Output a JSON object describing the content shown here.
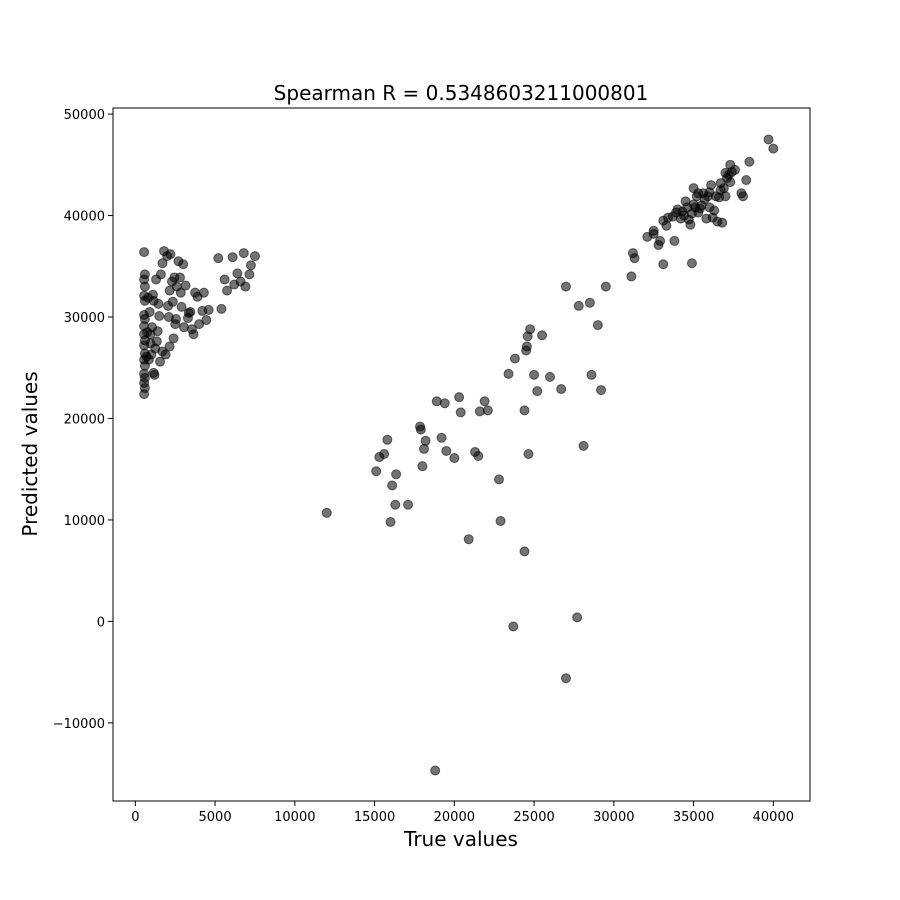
{
  "chart_data": {
    "type": "scatter",
    "title": "Spearman R = 0.5348603211000801",
    "xlabel": "True values",
    "ylabel": "Predicted values",
    "xlim": [
      -1400,
      42300
    ],
    "ylim": [
      -17700,
      50600
    ],
    "xticks": [
      0,
      5000,
      10000,
      15000,
      20000,
      25000,
      30000,
      35000,
      40000
    ],
    "xtick_labels": [
      "0",
      "5000",
      "10000",
      "15000",
      "20000",
      "25000",
      "30000",
      "35000",
      "40000"
    ],
    "yticks": [
      -10000,
      0,
      10000,
      20000,
      30000,
      40000,
      50000
    ],
    "ytick_labels": [
      "−10000",
      "0",
      "10000",
      "20000",
      "30000",
      "40000",
      "50000"
    ],
    "grid": false,
    "marker_color": "#000000",
    "marker_alpha": 0.55,
    "series": [
      {
        "points": [
          [
            550,
            36400
          ],
          [
            600,
            34200
          ],
          [
            550,
            33700
          ],
          [
            600,
            33000
          ],
          [
            550,
            32100
          ],
          [
            600,
            31600
          ],
          [
            550,
            30200
          ],
          [
            600,
            29800
          ],
          [
            550,
            29100
          ],
          [
            550,
            28300
          ],
          [
            600,
            27700
          ],
          [
            550,
            27200
          ],
          [
            600,
            26400
          ],
          [
            550,
            25800
          ],
          [
            600,
            25200
          ],
          [
            550,
            24400
          ],
          [
            600,
            24000
          ],
          [
            550,
            23500
          ],
          [
            600,
            23000
          ],
          [
            550,
            22400
          ],
          [
            700,
            26100
          ],
          [
            750,
            28500
          ],
          [
            800,
            31900
          ],
          [
            900,
            30500
          ],
          [
            950,
            27400
          ],
          [
            1000,
            26300
          ],
          [
            1050,
            29000
          ],
          [
            1100,
            32200
          ],
          [
            1150,
            24500
          ],
          [
            1200,
            24300
          ],
          [
            1250,
            26900
          ],
          [
            1300,
            33700
          ],
          [
            1350,
            27600
          ],
          [
            1400,
            28600
          ],
          [
            1450,
            31300
          ],
          [
            1500,
            30100
          ],
          [
            1550,
            25600
          ],
          [
            1600,
            34200
          ],
          [
            1700,
            35300
          ],
          [
            1800,
            36500
          ],
          [
            1900,
            26300
          ],
          [
            2000,
            36000
          ],
          [
            2050,
            31100
          ],
          [
            2100,
            30000
          ],
          [
            2150,
            27100
          ],
          [
            2200,
            36200
          ],
          [
            2300,
            33500
          ],
          [
            2350,
            31500
          ],
          [
            2400,
            27900
          ],
          [
            2500,
            29300
          ],
          [
            2550,
            29800
          ],
          [
            2600,
            33000
          ],
          [
            2700,
            35500
          ],
          [
            2800,
            33900
          ],
          [
            2850,
            32400
          ],
          [
            2900,
            31000
          ],
          [
            3000,
            35200
          ],
          [
            3050,
            29000
          ],
          [
            3150,
            33100
          ],
          [
            3300,
            29900
          ],
          [
            3450,
            30500
          ],
          [
            3550,
            28800
          ],
          [
            3650,
            28300
          ],
          [
            3750,
            32400
          ],
          [
            3900,
            32000
          ],
          [
            4000,
            29300
          ],
          [
            4200,
            30600
          ],
          [
            4300,
            32400
          ],
          [
            4450,
            29700
          ],
          [
            4600,
            30700
          ],
          [
            5200,
            35800
          ],
          [
            5400,
            30800
          ],
          [
            5600,
            33700
          ],
          [
            5750,
            32600
          ],
          [
            6100,
            35900
          ],
          [
            6200,
            33200
          ],
          [
            6400,
            34300
          ],
          [
            6600,
            33500
          ],
          [
            6800,
            36300
          ],
          [
            6900,
            33000
          ],
          [
            7150,
            34200
          ],
          [
            7250,
            35100
          ],
          [
            7500,
            36000
          ],
          [
            2450,
            33900
          ],
          [
            1700,
            26600
          ],
          [
            850,
            25800
          ],
          [
            950,
            28300
          ],
          [
            1150,
            31600
          ],
          [
            2150,
            32600
          ],
          [
            3350,
            30400
          ],
          [
            12000,
            10700
          ],
          [
            15100,
            14800
          ],
          [
            15300,
            16200
          ],
          [
            15600,
            16500
          ],
          [
            15800,
            17900
          ],
          [
            16000,
            9800
          ],
          [
            16100,
            13400
          ],
          [
            16300,
            11500
          ],
          [
            16350,
            14500
          ],
          [
            17100,
            11500
          ],
          [
            17850,
            19200
          ],
          [
            17900,
            18900
          ],
          [
            18000,
            15300
          ],
          [
            18100,
            17000
          ],
          [
            18200,
            17800
          ],
          [
            18800,
            -14700
          ],
          [
            18900,
            21700
          ],
          [
            19200,
            18100
          ],
          [
            19400,
            21500
          ],
          [
            19500,
            16800
          ],
          [
            20000,
            16100
          ],
          [
            20300,
            22100
          ],
          [
            20400,
            20600
          ],
          [
            20900,
            8100
          ],
          [
            21300,
            16700
          ],
          [
            21500,
            16300
          ],
          [
            21600,
            20700
          ],
          [
            21900,
            21700
          ],
          [
            22100,
            20800
          ],
          [
            22800,
            14000
          ],
          [
            22900,
            9900
          ],
          [
            23400,
            24400
          ],
          [
            23700,
            -500
          ],
          [
            23800,
            25900
          ],
          [
            24400,
            20800
          ],
          [
            24400,
            6900
          ],
          [
            24500,
            26700
          ],
          [
            24550,
            27100
          ],
          [
            24600,
            28100
          ],
          [
            24650,
            16500
          ],
          [
            24750,
            28800
          ],
          [
            25000,
            24300
          ],
          [
            25200,
            22700
          ],
          [
            25500,
            28200
          ],
          [
            26000,
            24100
          ],
          [
            26700,
            22900
          ],
          [
            27000,
            33000
          ],
          [
            27000,
            -5600
          ],
          [
            27700,
            400
          ],
          [
            27800,
            31100
          ],
          [
            28100,
            17300
          ],
          [
            28500,
            31400
          ],
          [
            28600,
            24300
          ],
          [
            29000,
            29200
          ],
          [
            29200,
            22800
          ],
          [
            29500,
            33000
          ],
          [
            31100,
            34000
          ],
          [
            31200,
            36300
          ],
          [
            31300,
            35800
          ],
          [
            32100,
            37900
          ],
          [
            32500,
            38500
          ],
          [
            32500,
            38200
          ],
          [
            32800,
            37100
          ],
          [
            32900,
            37500
          ],
          [
            33100,
            35200
          ],
          [
            33100,
            39500
          ],
          [
            33300,
            39000
          ],
          [
            33400,
            39800
          ],
          [
            33700,
            39900
          ],
          [
            33800,
            37500
          ],
          [
            33900,
            40300
          ],
          [
            34000,
            40600
          ],
          [
            34200,
            39700
          ],
          [
            34300,
            40400
          ],
          [
            34500,
            41400
          ],
          [
            34600,
            40800
          ],
          [
            34700,
            39600
          ],
          [
            34800,
            39100
          ],
          [
            34900,
            40200
          ],
          [
            34900,
            35300
          ],
          [
            35000,
            41100
          ],
          [
            35000,
            42700
          ],
          [
            35100,
            40800
          ],
          [
            35200,
            41900
          ],
          [
            35300,
            42200
          ],
          [
            35400,
            40700
          ],
          [
            35500,
            41000
          ],
          [
            35600,
            42200
          ],
          [
            35700,
            41600
          ],
          [
            35800,
            39700
          ],
          [
            35900,
            41900
          ],
          [
            36000,
            40800
          ],
          [
            36100,
            43000
          ],
          [
            36300,
            40500
          ],
          [
            36400,
            41900
          ],
          [
            36500,
            39400
          ],
          [
            36600,
            41800
          ],
          [
            36700,
            43200
          ],
          [
            36800,
            39300
          ],
          [
            36900,
            42700
          ],
          [
            37000,
            41900
          ],
          [
            37100,
            43700
          ],
          [
            37200,
            44000
          ],
          [
            37300,
            43300
          ],
          [
            37300,
            45000
          ],
          [
            37400,
            44300
          ],
          [
            37600,
            44500
          ],
          [
            38000,
            42200
          ],
          [
            38100,
            41900
          ],
          [
            38300,
            43500
          ],
          [
            38500,
            45300
          ],
          [
            39700,
            47500
          ],
          [
            40000,
            46600
          ],
          [
            36000,
            42300
          ],
          [
            35300,
            40300
          ],
          [
            34400,
            40000
          ],
          [
            36200,
            39800
          ],
          [
            37000,
            44200
          ],
          [
            36700,
            42500
          ]
        ]
      }
    ]
  }
}
